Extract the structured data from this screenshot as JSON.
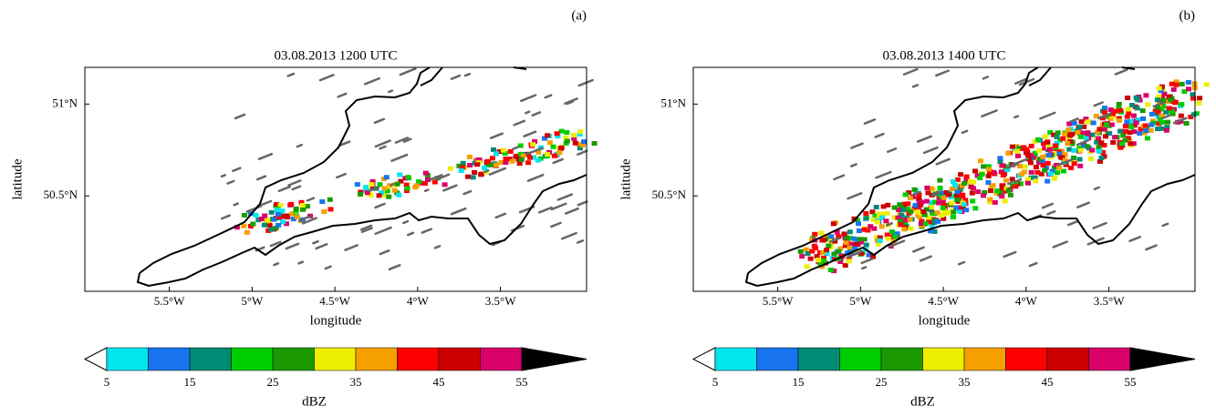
{
  "panels": [
    {
      "label": "(a)",
      "title": "03.08.2013 1200 UTC",
      "xlabel": "longitude",
      "ylabel": "latitude",
      "xlim": [
        -6.01,
        -2.98
      ],
      "ylim": [
        49.98,
        51.2
      ],
      "xticks": [
        {
          "value": -5.5,
          "label": "5.5°W"
        },
        {
          "value": -5,
          "label": "5°W"
        },
        {
          "value": -4.5,
          "label": "4.5°W"
        },
        {
          "value": -4,
          "label": "4°W"
        },
        {
          "value": -3.5,
          "label": "3.5°W"
        }
      ],
      "yticks": [
        {
          "value": 50.5,
          "label": "50.5°N"
        },
        {
          "value": 51,
          "label": "51°N"
        }
      ],
      "colorbar": {
        "label": "dBZ",
        "levels": [
          5,
          10,
          15,
          20,
          25,
          30,
          35,
          40,
          45,
          50,
          55
        ],
        "ticks": [
          5,
          15,
          25,
          35,
          45,
          55
        ],
        "colors": [
          "#00e5ee",
          "#1874ee",
          "#008b74",
          "#00cd00",
          "#1a9a00",
          "#eeee00",
          "#f5a000",
          "#ff0000",
          "#cc0000",
          "#d9006a"
        ],
        "under_color": "#ffffff",
        "over_color": "#000000"
      }
    },
    {
      "label": "(b)",
      "title": "03.08.2013 1400 UTC",
      "xlabel": "longitude",
      "ylabel": "latitude",
      "xlim": [
        -6.01,
        -2.98
      ],
      "ylim": [
        49.98,
        51.2
      ],
      "xticks": [
        {
          "value": -5.5,
          "label": "5.5°W"
        },
        {
          "value": -5,
          "label": "5°W"
        },
        {
          "value": -4.5,
          "label": "4.5°W"
        },
        {
          "value": -4,
          "label": "4°W"
        },
        {
          "value": -3.5,
          "label": "3.5°W"
        }
      ],
      "yticks": [
        {
          "value": 50.5,
          "label": "50.5°N"
        },
        {
          "value": 51,
          "label": "51°N"
        }
      ],
      "colorbar": {
        "label": "dBZ",
        "levels": [
          5,
          10,
          15,
          20,
          25,
          30,
          35,
          40,
          45,
          50,
          55
        ],
        "ticks": [
          5,
          15,
          25,
          35,
          45,
          55
        ],
        "colors": [
          "#00e5ee",
          "#1874ee",
          "#008b74",
          "#00cd00",
          "#1a9a00",
          "#eeee00",
          "#f5a000",
          "#ff0000",
          "#cc0000",
          "#d9006a"
        ],
        "under_color": "#ffffff",
        "over_color": "#000000"
      }
    }
  ]
}
